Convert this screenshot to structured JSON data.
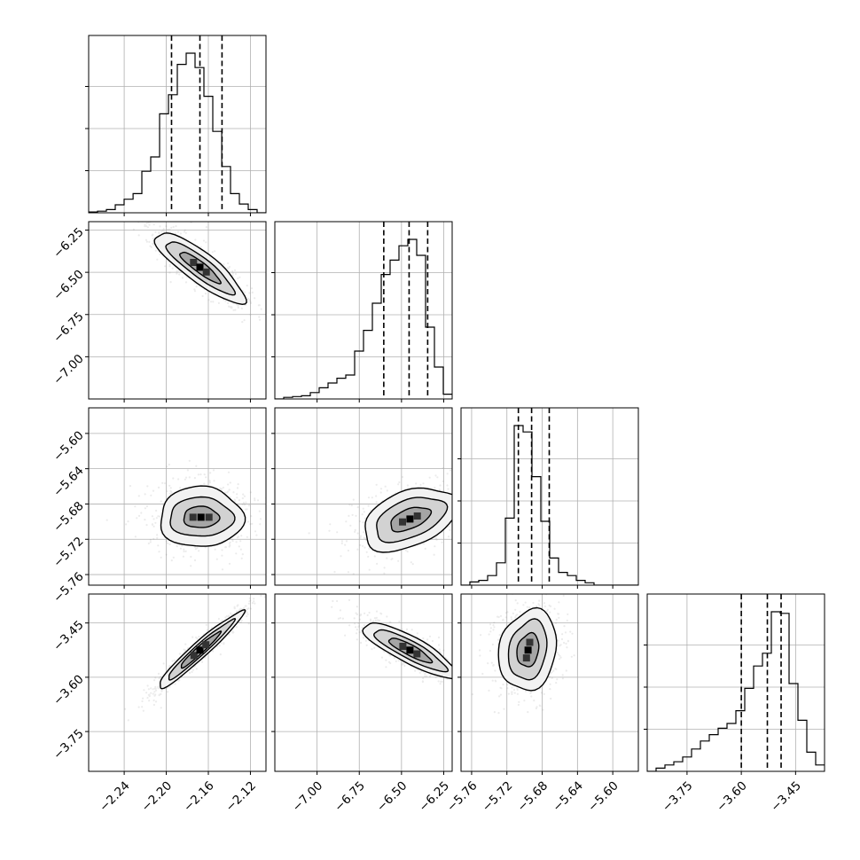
{
  "chart_data": {
    "type": "corner",
    "parameters": [
      {
        "index": 0,
        "range": [
          -2.2738,
          -2.1052
        ],
        "ticks": [
          -2.24,
          -2.2,
          -2.16,
          -2.12
        ],
        "tick_labels": [
          "−2.24",
          "−2.20",
          "−2.16",
          "−2.12"
        ],
        "quantiles": [
          -2.195,
          -2.168,
          -2.147
        ],
        "mode": -2.163,
        "hist_bin_edges": [
          -2.2738,
          -2.2654,
          -2.2569,
          -2.2485,
          -2.2401,
          -2.2316,
          -2.2232,
          -2.2148,
          -2.2064,
          -2.1979,
          -2.1895,
          -2.1811,
          -2.1726,
          -2.1642,
          -2.1558,
          -2.1473,
          -2.1389,
          -2.1305,
          -2.1221,
          -2.1136,
          -2.1052
        ],
        "hist_counts": [
          0.005,
          0.01,
          0.02,
          0.05,
          0.085,
          0.12,
          0.26,
          0.35,
          0.62,
          0.74,
          0.93,
          1.0,
          0.91,
          0.73,
          0.51,
          0.29,
          0.12,
          0.055,
          0.02,
          0.0
        ]
      },
      {
        "index": 1,
        "range": [
          -7.25,
          -6.2
        ],
        "ticks": [
          -7.0,
          -6.75,
          -6.5,
          -6.25
        ],
        "tick_labels": [
          "−7.00",
          "−6.75",
          "−6.50",
          "−6.25"
        ],
        "quantiles": [
          -6.605,
          -6.455,
          -6.345
        ],
        "mode": -6.4,
        "hist_bin_edges": [
          -7.25,
          -7.1975,
          -7.145,
          -7.0925,
          -7.04,
          -6.9875,
          -6.935,
          -6.8825,
          -6.83,
          -6.7775,
          -6.725,
          -6.6725,
          -6.62,
          -6.5675,
          -6.515,
          -6.4625,
          -6.41,
          -6.3575,
          -6.305,
          -6.2525,
          -6.2
        ],
        "hist_counts": [
          0.0,
          0.01,
          0.015,
          0.02,
          0.04,
          0.07,
          0.1,
          0.13,
          0.15,
          0.3,
          0.43,
          0.6,
          0.78,
          0.87,
          0.96,
          1.0,
          0.9,
          0.45,
          0.2,
          0.03
        ]
      },
      {
        "index": 2,
        "range": [
          -5.772,
          -5.571
        ],
        "ticks": [
          -5.76,
          -5.72,
          -5.68,
          -5.64,
          -5.6
        ],
        "tick_labels": [
          "−5.76",
          "−5.72",
          "−5.68",
          "−5.64",
          "−5.60"
        ],
        "quantiles": [
          -5.707,
          -5.692,
          -5.672
        ],
        "mode": -5.697,
        "hist_bin_edges": [
          -5.772,
          -5.7619,
          -5.7519,
          -5.7418,
          -5.7318,
          -5.7217,
          -5.7117,
          -5.7016,
          -5.6916,
          -5.6815,
          -5.6715,
          -5.6614,
          -5.6514,
          -5.6413,
          -5.6313,
          -5.6212,
          -5.6112,
          -5.6011,
          -5.5911,
          -5.581,
          -5.571
        ],
        "hist_counts": [
          0.0,
          0.02,
          0.03,
          0.06,
          0.14,
          0.42,
          1.0,
          0.96,
          0.68,
          0.4,
          0.17,
          0.08,
          0.06,
          0.03,
          0.015,
          0.0,
          0.0,
          0.0,
          0.0,
          0.0
        ]
      },
      {
        "index": 3,
        "range": [
          -3.86,
          -3.37
        ],
        "ticks": [
          -3.75,
          -3.6,
          -3.45
        ],
        "tick_labels": [
          "−3.75",
          "−3.60",
          "−3.45"
        ],
        "quantiles": [
          -3.6,
          -3.528,
          -3.49
        ],
        "mode": -3.51,
        "hist_bin_edges": [
          -3.86,
          -3.8355,
          -3.811,
          -3.7865,
          -3.762,
          -3.7375,
          -3.713,
          -3.6885,
          -3.664,
          -3.6395,
          -3.615,
          -3.5905,
          -3.566,
          -3.5415,
          -3.517,
          -3.4925,
          -3.468,
          -3.4435,
          -3.419,
          -3.3945,
          -3.37
        ],
        "hist_counts": [
          0.0,
          0.02,
          0.04,
          0.06,
          0.09,
          0.14,
          0.19,
          0.23,
          0.27,
          0.3,
          0.38,
          0.52,
          0.66,
          0.74,
          1.0,
          0.99,
          0.55,
          0.32,
          0.12,
          0.04
        ]
      }
    ],
    "grid": true,
    "style": {
      "color": "#000000",
      "scatter_color": "#888888",
      "grid_color": "#b0b0b0"
    }
  }
}
